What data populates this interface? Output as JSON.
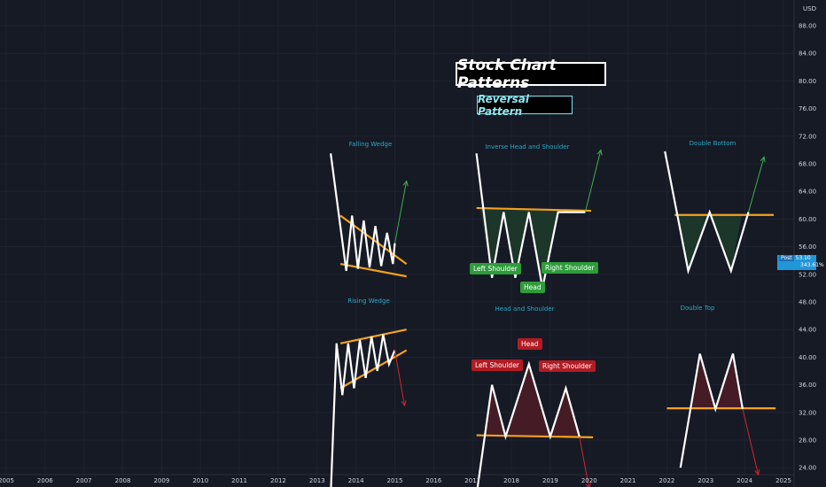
{
  "title": "Stock Chart Patterns",
  "subtitle": "Reversal Pattern",
  "currency": "USD",
  "price_tag": {
    "prefix": "Post",
    "price": "53.10",
    "change": "343.61%"
  },
  "colors": {
    "background": "#161a25",
    "price_line": "#ffffff",
    "neckline": "#f5a020",
    "up_arrow": "#3bb14a",
    "down_arrow": "#d4242c",
    "pattern_title": "#28a8c8",
    "bull_fill": "#1d3a2a",
    "bear_fill": "#4a1d26"
  },
  "patterns": {
    "falling_wedge": {
      "title": "Falling Wedge"
    },
    "inverse_head_shoulders": {
      "title": "Inverse Head and Shoulder",
      "labels": {
        "left": "Left Shoulder",
        "head": "Head",
        "right": "Right Shoulder"
      }
    },
    "double_bottom": {
      "title": "Double Bottom"
    },
    "rising_wedge": {
      "title": "Rising Wedge"
    },
    "head_shoulders": {
      "title": "Head and Shoulder",
      "labels": {
        "left": "Left Shoulder",
        "head": "Head",
        "right": "Right Shoulder"
      }
    },
    "double_top": {
      "title": "Double Top"
    }
  },
  "chart_data": {
    "type": "line",
    "x_axis": {
      "type": "year",
      "range": [
        2005,
        2025
      ],
      "ticks": [
        "2005",
        "2006",
        "2007",
        "2008",
        "2009",
        "2010",
        "2011",
        "2012",
        "2013",
        "2014",
        "2015",
        "2016",
        "2017",
        "2018",
        "2019",
        "2020",
        "2021",
        "2022",
        "2023",
        "2024",
        "2025"
      ]
    },
    "y_axis": {
      "range": [
        20,
        90
      ],
      "position": "right",
      "ticks": [
        "88.00",
        "84.00",
        "80.00",
        "76.00",
        "72.00",
        "68.00",
        "64.00",
        "60.00",
        "56.00",
        "52.00",
        "48.00",
        "44.00",
        "40.00",
        "36.00",
        "32.00",
        "28.00",
        "24.00"
      ]
    },
    "grid": true,
    "series": [
      {
        "name": "Falling Wedge",
        "x": [
          2013.35,
          2013.75,
          2013.9,
          2014.05,
          2014.2,
          2014.35,
          2014.5,
          2014.65,
          2014.8,
          2014.95,
          2015.0
        ],
        "y": [
          69.5,
          52.5,
          60.5,
          52.8,
          59.8,
          53,
          59,
          53.2,
          58,
          53.5,
          56.5
        ]
      },
      {
        "name": "Inverse Head and Shoulder",
        "x": [
          2017.1,
          2017.5,
          2017.8,
          2018.1,
          2018.45,
          2018.8,
          2019.2,
          2019.9
        ],
        "y": [
          69.5,
          51.5,
          61,
          51.5,
          61,
          50,
          61,
          61
        ]
      },
      {
        "name": "Double Bottom",
        "x": [
          2021.95,
          2022.55,
          2023.1,
          2023.65,
          2024.1
        ],
        "y": [
          69.8,
          52.5,
          61,
          52.5,
          61
        ]
      },
      {
        "name": "Rising Wedge",
        "x": [
          2013.35,
          2013.5,
          2013.65,
          2013.8,
          2013.95,
          2014.1,
          2014.25,
          2014.4,
          2014.55,
          2014.7,
          2014.85,
          2015.0
        ],
        "y": [
          20,
          42,
          34.5,
          42,
          35.5,
          42.5,
          37,
          43,
          38,
          43.3,
          39,
          41
        ]
      },
      {
        "name": "Head and Shoulder",
        "x": [
          2017.1,
          2017.5,
          2017.85,
          2018.45,
          2019.0,
          2019.4,
          2019.75
        ],
        "y": [
          20,
          36,
          28.5,
          39,
          28.5,
          35.5,
          28.5
        ]
      },
      {
        "name": "Double Top",
        "x": [
          2022.35,
          2022.85,
          2023.25,
          2023.7,
          2023.95
        ],
        "y": [
          24,
          40.5,
          32.5,
          40.5,
          32.5
        ]
      }
    ],
    "necklines": [
      {
        "pattern": "Falling Wedge upper",
        "x": [
          2013.6,
          2015.3
        ],
        "y": [
          60.5,
          53.5
        ]
      },
      {
        "pattern": "Falling Wedge lower",
        "x": [
          2013.6,
          2015.3
        ],
        "y": [
          53.5,
          51.7
        ]
      },
      {
        "pattern": "Inverse Head and Shoulder",
        "x": [
          2017.1,
          2020.05
        ],
        "y": [
          61.6,
          61.2
        ]
      },
      {
        "pattern": "Double Bottom",
        "x": [
          2022.2,
          2024.75
        ],
        "y": [
          60.6,
          60.6
        ]
      },
      {
        "pattern": "Rising Wedge upper",
        "x": [
          2013.6,
          2015.3
        ],
        "y": [
          42,
          44
        ]
      },
      {
        "pattern": "Rising Wedge lower",
        "x": [
          2013.6,
          2015.3
        ],
        "y": [
          35.5,
          41
        ]
      },
      {
        "pattern": "Head and Shoulder",
        "x": [
          2017.1,
          2020.1
        ],
        "y": [
          28.7,
          28.4
        ]
      },
      {
        "pattern": "Double Top",
        "x": [
          2022.0,
          2024.8
        ],
        "y": [
          32.6,
          32.6
        ]
      }
    ],
    "arrows": [
      {
        "direction": "up",
        "from": [
          2015.0,
          56.5
        ],
        "to": [
          2015.3,
          65.5
        ]
      },
      {
        "direction": "up",
        "from": [
          2019.9,
          61
        ],
        "to": [
          2020.3,
          70
        ]
      },
      {
        "direction": "up",
        "from": [
          2024.1,
          61
        ],
        "to": [
          2024.5,
          69
        ]
      },
      {
        "direction": "down",
        "from": [
          2015.0,
          41
        ],
        "to": [
          2015.25,
          33
        ]
      },
      {
        "direction": "down",
        "from": [
          2019.75,
          28.5
        ],
        "to": [
          2020.0,
          21
        ]
      },
      {
        "direction": "down",
        "from": [
          2023.95,
          32.5
        ],
        "to": [
          2024.35,
          23
        ]
      }
    ]
  }
}
